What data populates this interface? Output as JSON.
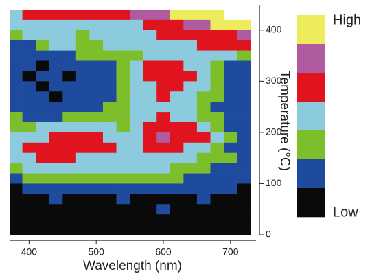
{
  "chart_data": {
    "type": "heatmap",
    "x_label": "Wavelength (nm)",
    "y_label": "Temperature (°C)",
    "xlim": [
      371,
      738
    ],
    "ylim": [
      0,
      448
    ],
    "xticks": [
      400,
      500,
      600,
      700
    ],
    "yticks": [
      0,
      100,
      200,
      300,
      400
    ],
    "x": [
      380,
      400,
      420,
      440,
      460,
      480,
      500,
      520,
      540,
      560,
      580,
      600,
      620,
      640,
      660,
      680,
      700,
      720
    ],
    "y": [
      430,
      410,
      390,
      370,
      350,
      330,
      310,
      290,
      270,
      250,
      230,
      210,
      190,
      170,
      150,
      130,
      110,
      90,
      70,
      50,
      30,
      10
    ],
    "values": [
      [
        3,
        4,
        4,
        4,
        4,
        4,
        4,
        4,
        4,
        5,
        5,
        5,
        6,
        6,
        6,
        6,
        null,
        null
      ],
      [
        3,
        3,
        3,
        3,
        3,
        3,
        3,
        3,
        3,
        3,
        4,
        4,
        4,
        5,
        5,
        6,
        6,
        6
      ],
      [
        2,
        3,
        3,
        3,
        3,
        2,
        3,
        3,
        3,
        3,
        3,
        4,
        4,
        4,
        4,
        4,
        4,
        5
      ],
      [
        1,
        1,
        2,
        3,
        3,
        2,
        2,
        3,
        3,
        3,
        3,
        3,
        3,
        3,
        4,
        4,
        4,
        4
      ],
      [
        1,
        1,
        1,
        1,
        1,
        2,
        2,
        2,
        2,
        2,
        3,
        3,
        3,
        3,
        3,
        3,
        3,
        2
      ],
      [
        1,
        1,
        0,
        1,
        1,
        1,
        1,
        1,
        2,
        3,
        4,
        4,
        4,
        3,
        3,
        2,
        1,
        1
      ],
      [
        1,
        0,
        1,
        1,
        0,
        1,
        1,
        1,
        2,
        3,
        4,
        4,
        4,
        4,
        3,
        2,
        1,
        1
      ],
      [
        1,
        1,
        0,
        1,
        1,
        1,
        1,
        1,
        2,
        3,
        3,
        4,
        4,
        3,
        3,
        2,
        1,
        1
      ],
      [
        1,
        1,
        1,
        0,
        1,
        1,
        1,
        1,
        2,
        3,
        3,
        4,
        3,
        3,
        2,
        2,
        1,
        1
      ],
      [
        1,
        1,
        1,
        1,
        1,
        1,
        1,
        2,
        2,
        3,
        3,
        3,
        3,
        3,
        2,
        1,
        1,
        1
      ],
      [
        2,
        1,
        1,
        1,
        2,
        2,
        2,
        2,
        2,
        3,
        3,
        4,
        3,
        3,
        2,
        2,
        1,
        1
      ],
      [
        2,
        2,
        3,
        3,
        3,
        3,
        3,
        3,
        2,
        3,
        4,
        4,
        4,
        4,
        3,
        2,
        1,
        1
      ],
      [
        3,
        3,
        3,
        4,
        4,
        4,
        4,
        3,
        3,
        3,
        4,
        5,
        4,
        4,
        4,
        3,
        2,
        1
      ],
      [
        3,
        4,
        4,
        4,
        4,
        4,
        4,
        4,
        3,
        3,
        4,
        4,
        4,
        3,
        3,
        2,
        1,
        1
      ],
      [
        3,
        3,
        4,
        4,
        4,
        3,
        3,
        3,
        3,
        3,
        3,
        3,
        3,
        3,
        2,
        2,
        2,
        1
      ],
      [
        2,
        3,
        3,
        3,
        3,
        3,
        3,
        3,
        3,
        3,
        3,
        3,
        2,
        2,
        2,
        1,
        1,
        1
      ],
      [
        1,
        2,
        2,
        2,
        2,
        2,
        2,
        2,
        2,
        2,
        2,
        2,
        2,
        1,
        1,
        1,
        1,
        1
      ],
      [
        0,
        1,
        1,
        1,
        1,
        1,
        1,
        1,
        1,
        1,
        1,
        1,
        1,
        1,
        1,
        1,
        1,
        0
      ],
      [
        0,
        0,
        0,
        1,
        0,
        0,
        0,
        0,
        1,
        0,
        0,
        0,
        0,
        0,
        1,
        0,
        0,
        0
      ],
      [
        0,
        0,
        0,
        0,
        0,
        0,
        0,
        0,
        0,
        0,
        0,
        1,
        0,
        0,
        0,
        0,
        0,
        0
      ],
      [
        0,
        0,
        0,
        0,
        0,
        0,
        0,
        0,
        0,
        0,
        0,
        0,
        0,
        0,
        0,
        0,
        0,
        0
      ],
      [
        0,
        0,
        0,
        0,
        0,
        0,
        0,
        0,
        0,
        0,
        0,
        0,
        0,
        0,
        0,
        0,
        0,
        0
      ]
    ],
    "colors": [
      "#0a0a0a",
      "#1f4b9e",
      "#7cbf2b",
      "#8ccbdd",
      "#e0141e",
      "#b05a9f",
      "#ecec5c"
    ],
    "colorbar_labels": [
      "High",
      "Low"
    ]
  }
}
